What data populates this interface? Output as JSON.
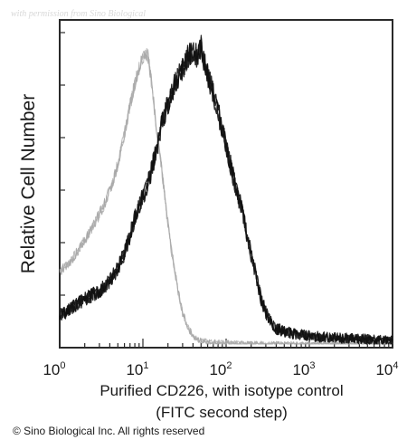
{
  "watermark": "with permission from Sino Biological",
  "copyright": "© Sino Biological Inc. All rights reserved",
  "chart_data": {
    "type": "line",
    "title": "",
    "xlabel": [
      "Purified CD226, with isotype control",
      "(FITC second step)"
    ],
    "ylabel": "Relative Cell Number",
    "x_scale": "log",
    "xlim": [
      1,
      10000
    ],
    "ylim": [
      0,
      100
    ],
    "x_ticks": [
      {
        "base": "10",
        "exp": "0"
      },
      {
        "base": "10",
        "exp": "1"
      },
      {
        "base": "10",
        "exp": "2"
      },
      {
        "base": "10",
        "exp": "3"
      },
      {
        "base": "10",
        "exp": "4"
      }
    ],
    "series": [
      {
        "color": "#a8a8a8",
        "x": [
          1,
          1.3,
          1.7,
          2.2,
          2.8,
          3.5,
          4.5,
          5.5,
          6.5,
          7.5,
          8.5,
          9.5,
          10.5,
          11.5,
          12.5,
          13.5,
          15,
          17,
          19,
          22,
          26,
          30,
          35,
          42,
          50,
          60,
          75,
          90,
          110,
          140,
          200,
          300,
          500,
          1000,
          10000
        ],
        "y": [
          23,
          26,
          30,
          35,
          40,
          45,
          53,
          62,
          72,
          80,
          86,
          90,
          93,
          92,
          85,
          77,
          66,
          55,
          43,
          30,
          18,
          10,
          5,
          2,
          1,
          0.7,
          0.5,
          0.4,
          0.3,
          0.2,
          0.1,
          0.05,
          0,
          0,
          0
        ]
      },
      {
        "color": "#111111",
        "x": [
          1,
          1.3,
          1.7,
          2.2,
          3,
          4,
          5,
          6,
          7,
          8,
          9,
          10,
          12,
          14,
          16,
          19,
          22,
          26,
          30,
          35,
          40,
          45,
          50,
          55,
          60,
          70,
          80,
          100,
          120,
          150,
          180,
          220,
          260,
          300,
          350,
          400,
          500,
          600,
          800,
          1000,
          2000,
          5000,
          10000
        ],
        "y": [
          9,
          11,
          13,
          15,
          17,
          20,
          24,
          29,
          35,
          40,
          44,
          47,
          53,
          60,
          68,
          75,
          80,
          85,
          88,
          92,
          93,
          92,
          95,
          90,
          86,
          80,
          74,
          64,
          54,
          44,
          34,
          24,
          15,
          10,
          7,
          5,
          4,
          3.5,
          3,
          2.5,
          2,
          1.5,
          1
        ]
      }
    ]
  }
}
